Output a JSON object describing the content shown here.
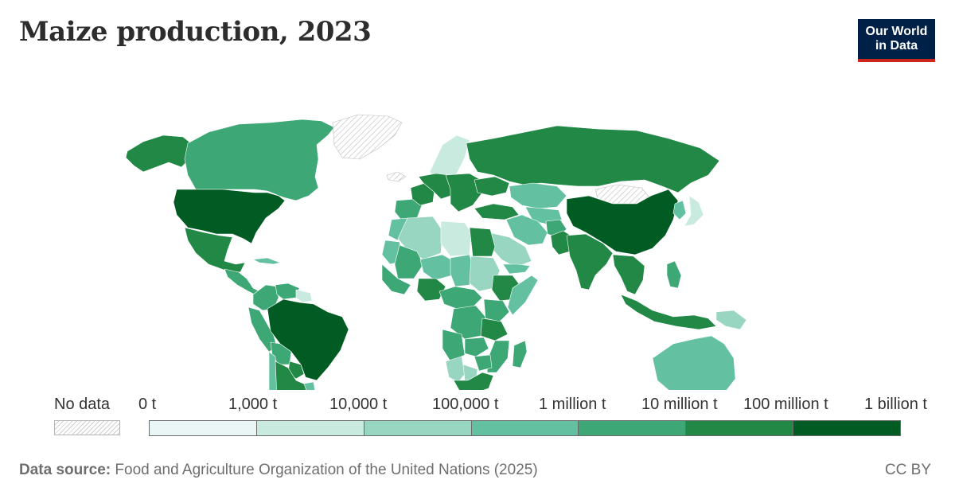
{
  "title": "Maize production, 2023",
  "logo": {
    "line1": "Our World",
    "line2": "in Data"
  },
  "legend": {
    "no_data_label": "No data",
    "tick_labels": [
      "0 t",
      "1,000 t",
      "10,000 t",
      "100,000 t",
      "1 million t",
      "10 million t",
      "100 million t",
      "1 billion t"
    ],
    "bin_colors": [
      "#e9f6f5",
      "#c9eadf",
      "#98d6c2",
      "#63c1a1",
      "#3ea776",
      "#218845",
      "#005c22"
    ],
    "no_data_color": "#ffffff"
  },
  "source": {
    "label": "Data source:",
    "text": "Food and Agriculture Organization of the United Nations (2025)"
  },
  "license": "CC BY",
  "chart_data": {
    "type": "choropleth",
    "title": "Maize production, 2023",
    "unit": "t",
    "scale": "log",
    "bins": [
      0,
      1000,
      10000,
      100000,
      1000000,
      10000000,
      100000000,
      1000000000
    ],
    "regions": [
      {
        "name": "United States",
        "bin": 6
      },
      {
        "name": "Canada",
        "bin": 4
      },
      {
        "name": "Alaska",
        "bin": 5
      },
      {
        "name": "Greenland",
        "bin": null
      },
      {
        "name": "Mexico",
        "bin": 5
      },
      {
        "name": "Central America",
        "bin": 4
      },
      {
        "name": "Cuba",
        "bin": 3
      },
      {
        "name": "Colombia",
        "bin": 4
      },
      {
        "name": "Venezuela",
        "bin": 4
      },
      {
        "name": "Guyana",
        "bin": 1
      },
      {
        "name": "Peru",
        "bin": 4
      },
      {
        "name": "Bolivia",
        "bin": 4
      },
      {
        "name": "Brazil",
        "bin": 6
      },
      {
        "name": "Paraguay",
        "bin": 5
      },
      {
        "name": "Chile",
        "bin": 3
      },
      {
        "name": "Argentina",
        "bin": 5
      },
      {
        "name": "Uruguay",
        "bin": 3
      },
      {
        "name": "Iceland",
        "bin": null
      },
      {
        "name": "Scandinavia",
        "bin": 1
      },
      {
        "name": "Western Europe",
        "bin": 5
      },
      {
        "name": "France",
        "bin": 5
      },
      {
        "name": "Spain",
        "bin": 4
      },
      {
        "name": "Eastern Europe",
        "bin": 5
      },
      {
        "name": "Ukraine",
        "bin": 5
      },
      {
        "name": "Russia",
        "bin": 5
      },
      {
        "name": "Kazakhstan",
        "bin": 3
      },
      {
        "name": "Central Asia",
        "bin": 3
      },
      {
        "name": "Mongolia",
        "bin": null
      },
      {
        "name": "China",
        "bin": 6
      },
      {
        "name": "Korea",
        "bin": 3
      },
      {
        "name": "Japan",
        "bin": 1
      },
      {
        "name": "Turkey",
        "bin": 5
      },
      {
        "name": "Iran",
        "bin": 3
      },
      {
        "name": "Saudi Arabia",
        "bin": 2
      },
      {
        "name": "Yemen",
        "bin": 3
      },
      {
        "name": "Egypt",
        "bin": 5
      },
      {
        "name": "Algeria",
        "bin": 2
      },
      {
        "name": "Libya",
        "bin": 1
      },
      {
        "name": "Morocco",
        "bin": 3
      },
      {
        "name": "Mauritania",
        "bin": 3
      },
      {
        "name": "Mali",
        "bin": 4
      },
      {
        "name": "Niger",
        "bin": 3
      },
      {
        "name": "Chad",
        "bin": 3
      },
      {
        "name": "Sudan",
        "bin": 2
      },
      {
        "name": "Ethiopia",
        "bin": 5
      },
      {
        "name": "Somalia",
        "bin": 3
      },
      {
        "name": "Nigeria",
        "bin": 5
      },
      {
        "name": "West Africa",
        "bin": 4
      },
      {
        "name": "Central Africa",
        "bin": 4
      },
      {
        "name": "DR Congo",
        "bin": 4
      },
      {
        "name": "Kenya",
        "bin": 4
      },
      {
        "name": "Tanzania",
        "bin": 5
      },
      {
        "name": "Angola",
        "bin": 4
      },
      {
        "name": "Zambia",
        "bin": 4
      },
      {
        "name": "Mozambique",
        "bin": 4
      },
      {
        "name": "Namibia",
        "bin": 2
      },
      {
        "name": "Botswana",
        "bin": 2
      },
      {
        "name": "Zimbabwe",
        "bin": 4
      },
      {
        "name": "South Africa",
        "bin": 5
      },
      {
        "name": "Madagascar",
        "bin": 4
      },
      {
        "name": "India",
        "bin": 5
      },
      {
        "name": "Pakistan",
        "bin": 5
      },
      {
        "name": "Afghanistan",
        "bin": 4
      },
      {
        "name": "Southeast Asia",
        "bin": 5
      },
      {
        "name": "Philippines",
        "bin": 4
      },
      {
        "name": "Indonesia",
        "bin": 5
      },
      {
        "name": "Papua New Guinea",
        "bin": 2
      },
      {
        "name": "Australia",
        "bin": 3
      },
      {
        "name": "New Zealand",
        "bin": 3
      }
    ]
  }
}
